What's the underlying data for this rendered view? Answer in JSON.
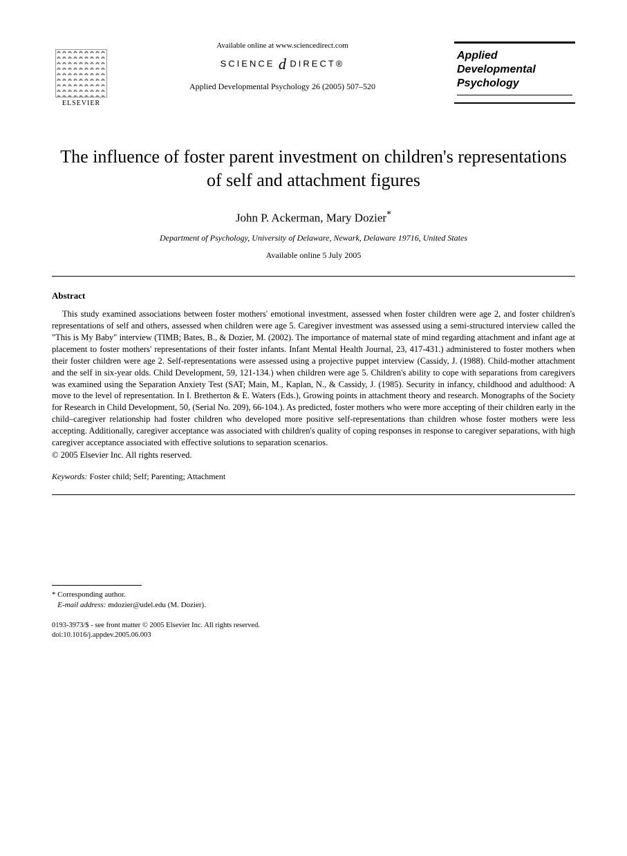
{
  "header": {
    "publisher_name": "ELSEVIER",
    "available_text": "Available online at www.sciencedirect.com",
    "science_direct_left": "SCIENCE",
    "science_direct_right": "DIRECT®",
    "citation": "Applied Developmental Psychology 26 (2005) 507–520",
    "journal_name_1": "Applied",
    "journal_name_2": "Developmental",
    "journal_name_3": "Psychology"
  },
  "article": {
    "title": "The influence of foster parent investment on children's representations of self and attachment figures",
    "authors": "John P. Ackerman, Mary Dozier",
    "corr_symbol": "*",
    "affiliation": "Department of Psychology, University of Delaware, Newark, Delaware 19716, United States",
    "pub_date": "Available online 5 July 2005"
  },
  "abstract": {
    "heading": "Abstract",
    "body": "This study examined associations between foster mothers' emotional investment, assessed when foster children were age 2, and foster children's representations of self and others, assessed when children were age 5. Caregiver investment was assessed using a semi-structured interview called the \"This is My Baby\" interview (TIMB; Bates, B., & Dozier, M. (2002). The importance of maternal state of mind regarding attachment and infant age at placement to foster mothers' representations of their foster infants. Infant Mental Health Journal, 23, 417-431.) administered to foster mothers when their foster children were age 2. Self-representations were assessed using a projective puppet interview (Cassidy, J. (1988). Child-mother attachment and the self in six-year olds. Child Development, 59, 121-134.) when children were age 5. Children's ability to cope with separations from caregivers was examined using the Separation Anxiety Test (SAT; Main, M., Kaplan, N., & Cassidy, J. (1985). Security in infancy, childhood and adulthood: A move to the level of representation. In I. Bretherton & E. Waters (Eds.), Growing points in attachment theory and research. Monographs of the Society for Research in Child Development, 50, (Serial No. 209), 66-104.). As predicted, foster mothers who were more accepting of their children early in the child–caregiver relationship had foster children who developed more positive self-representations than children whose foster mothers were less accepting. Additionally, caregiver acceptance was associated with children's quality of coping responses in response to caregiver separations, with high caregiver acceptance associated with effective solutions to separation scenarios.",
    "copyright": "© 2005 Elsevier Inc. All rights reserved."
  },
  "keywords": {
    "label": "Keywords:",
    "text": " Foster child; Self; Parenting; Attachment"
  },
  "footnote": {
    "corr_symbol": "*",
    "corr_text": " Corresponding author.",
    "email_label": "E-mail address:",
    "email": " mdozier@udel.edu (M. Dozier)."
  },
  "bottom": {
    "issn_line": "0193-3973/$ - see front matter © 2005 Elsevier Inc. All rights reserved.",
    "doi_line": "doi:10.1016/j.appdev.2005.06.003"
  }
}
